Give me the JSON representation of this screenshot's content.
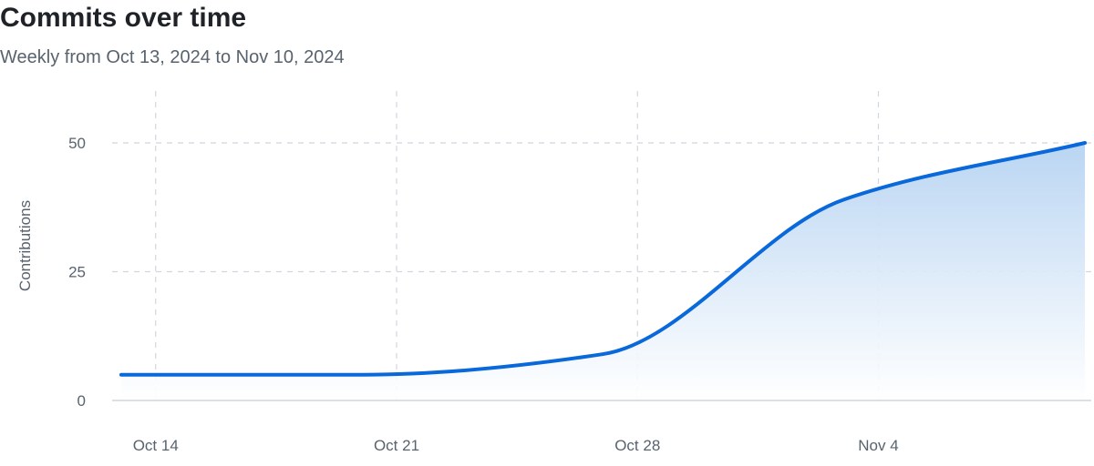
{
  "header": {
    "title": "Commits over time",
    "subtitle": "Weekly from Oct 13, 2024 to Nov 10, 2024"
  },
  "chart_data": {
    "type": "area",
    "title": "Commits over time",
    "subtitle": "Weekly from Oct 13, 2024 to Nov 10, 2024",
    "xlabel": "",
    "ylabel": "Contributions",
    "x": [
      "2024-10-13",
      "2024-10-20",
      "2024-10-27",
      "2024-11-03",
      "2024-11-10"
    ],
    "series": [
      {
        "values": [
          5,
          5,
          9,
          39,
          50
        ]
      }
    ],
    "xticks": [
      {
        "date": "2024-10-14",
        "label": "Oct 14"
      },
      {
        "date": "2024-10-21",
        "label": "Oct 21"
      },
      {
        "date": "2024-10-28",
        "label": "Oct 28"
      },
      {
        "date": "2024-11-04",
        "label": "Nov 4"
      }
    ],
    "yticks": [
      0,
      25,
      50
    ],
    "ylim": [
      0,
      50
    ],
    "xlim": [
      "2024-10-13",
      "2024-11-10"
    ],
    "grid": true,
    "colors": {
      "line": "#0969da",
      "area_top": "#b6d3f2",
      "area_bottom": "#ffffff",
      "grid": "#d0d7de",
      "axis": "#d0d7de"
    }
  }
}
